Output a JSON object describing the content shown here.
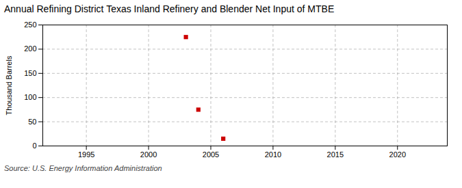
{
  "chart_data": {
    "type": "scatter",
    "title": "Annual Refining District Texas Inland Refinery and Blender Net Input of MTBE",
    "ylabel": "Thousand Barrels",
    "source": "Source: U.S. Energy Information Administration",
    "x": [
      2003,
      2004,
      2006
    ],
    "values": [
      225,
      75,
      15
    ],
    "color": "#cc0000",
    "marker": "square",
    "xlim": [
      1991.5,
      2024
    ],
    "ylim": [
      0,
      250
    ],
    "xticks": [
      1995,
      2000,
      2005,
      2010,
      2015,
      2020
    ],
    "yticks": [
      0,
      50,
      100,
      150,
      200,
      250
    ],
    "grid": true
  }
}
